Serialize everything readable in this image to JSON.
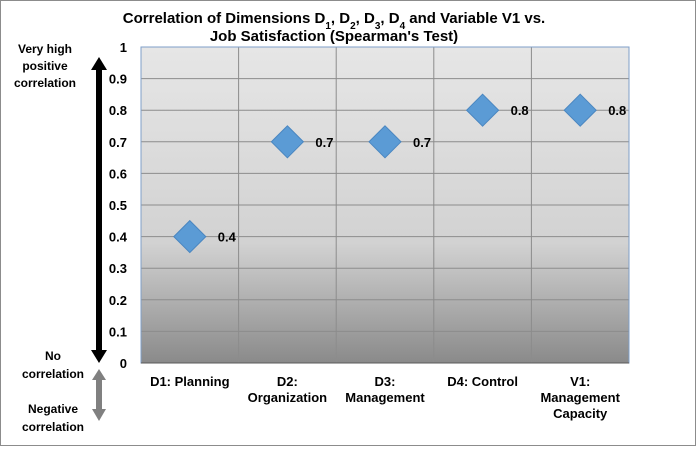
{
  "chart_data": {
    "type": "scatter",
    "title_line1_prefix": "Correlation of Dimensions D",
    "title_line1_rest": " and Variable V1 vs.",
    "title_subscript_labels": [
      {
        "base": "D",
        "sub": "1"
      },
      {
        "base": "D",
        "sub": "2"
      },
      {
        "base": "D",
        "sub": "3"
      },
      {
        "base": "D",
        "sub": "4"
      }
    ],
    "title_line2": "Job Satisfaction (Spearman's Test)",
    "categories": [
      [
        "D1: Planning"
      ],
      [
        "D2:",
        "Organization"
      ],
      [
        "D3:",
        "Management"
      ],
      [
        "D4: Control"
      ],
      [
        "V1:",
        "Management",
        "Capacity"
      ]
    ],
    "values": [
      0.4,
      0.7,
      0.7,
      0.8,
      0.8
    ],
    "data_labels": [
      "0.4",
      "0.7",
      "0.7",
      "0.8",
      "0.8"
    ],
    "y_ticks": [
      "0",
      "0.1",
      "0.2",
      "0.3",
      "0.4",
      "0.5",
      "0.6",
      "0.7",
      "0.8",
      "0.9",
      "1"
    ],
    "ylim": [
      0,
      1
    ],
    "marker": "diamond",
    "grid": true,
    "annotations": {
      "top": [
        "Very high",
        "positive",
        "correlation"
      ],
      "middle": [
        "No",
        "correlation"
      ],
      "bottom": [
        "Negative",
        "correlation"
      ]
    },
    "colors": {
      "marker": "#5b9bd5",
      "marker_edge": "#4a86c0",
      "grid": "#8c8c8c",
      "plot_top": "#e6e6e6",
      "plot_mid": "#d2d2d2",
      "plot_bottom": "#8a8a8a",
      "plot_border": "#7f9fc8",
      "arrow_positive": "#000000",
      "arrow_negative": "#808080"
    }
  }
}
